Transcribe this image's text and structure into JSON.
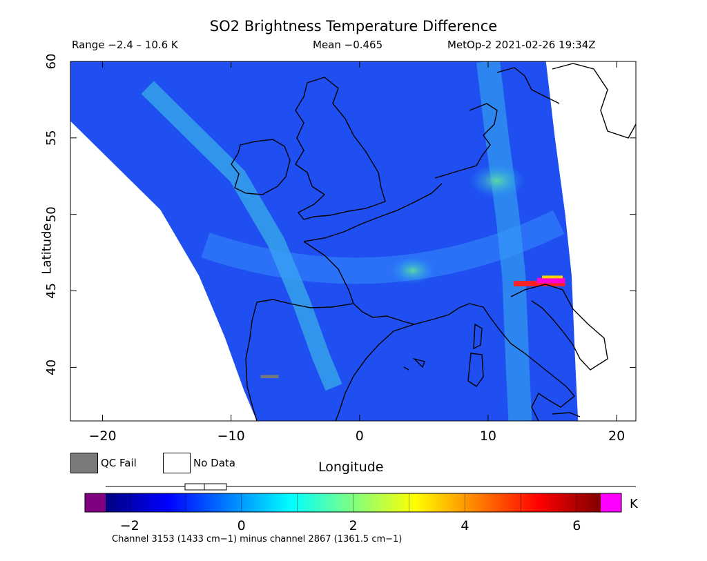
{
  "title": "SO2 Brightness Temperature Difference",
  "header": {
    "range": "Range −2.4 – 10.6 K",
    "mean": "Mean −0.465",
    "satellite_time": "MetOp-2 2021-02-26 19:34Z"
  },
  "legend": {
    "qc_fail": "QC Fail",
    "no_data": "No Data",
    "qc_fail_color": "#7a7a7a",
    "no_data_color": "#ffffff"
  },
  "colorbar": {
    "unit": "K",
    "min": -2.8,
    "max": 6.8,
    "ticks": [
      {
        "value": -2,
        "label": "−2"
      },
      {
        "value": 0,
        "label": "0"
      },
      {
        "value": 2,
        "label": "2"
      },
      {
        "value": 4,
        "label": "4"
      },
      {
        "value": 6,
        "label": "6"
      }
    ],
    "under_color": "#800080",
    "over_color": "#ff00ff",
    "stops": [
      "#000080",
      "#0000ff",
      "#0080ff",
      "#00ffff",
      "#80ff80",
      "#ffff00",
      "#ff8000",
      "#ff0000",
      "#800000"
    ],
    "footnote": "Channel 3153 (1433 cm−1) minus channel 2867 (1361.5 cm−1)"
  },
  "map": {
    "xlabel": "Longitude",
    "ylabel": "Latitude",
    "lon_range": [
      -22.5,
      21.5
    ],
    "lat_range": [
      36.5,
      60
    ],
    "x_ticks": [
      {
        "value": -20,
        "label": "−20"
      },
      {
        "value": -10,
        "label": "−10"
      },
      {
        "value": 0,
        "label": "0"
      },
      {
        "value": 10,
        "label": "10"
      },
      {
        "value": 20,
        "label": "20"
      }
    ],
    "y_ticks": [
      {
        "value": 40,
        "label": "40"
      },
      {
        "value": 45,
        "label": "45"
      },
      {
        "value": 50,
        "label": "50"
      },
      {
        "value": 55,
        "label": "55"
      },
      {
        "value": 60,
        "label": "60"
      }
    ],
    "swath_edge_west": [
      [
        -22.5,
        56.1
      ],
      [
        -15.5,
        50.3
      ],
      [
        -12.5,
        46.0
      ],
      [
        -10.5,
        42.0
      ],
      [
        -9.0,
        38.5
      ],
      [
        -8.0,
        36.5
      ]
    ],
    "swath_edge_east": [
      [
        14.5,
        60.0
      ],
      [
        15.2,
        55.0
      ],
      [
        16.0,
        50.0
      ],
      [
        16.5,
        46.0
      ],
      [
        16.8,
        40.0
      ],
      [
        17.0,
        36.5
      ]
    ],
    "features": [
      {
        "name": "high-sdf-band",
        "lon": [
          12,
          16
        ],
        "lat": [
          45.0,
          46.0
        ]
      },
      {
        "name": "qc-fail-pixels",
        "lon": [
          -7.7,
          -6.3
        ],
        "lat": [
          39.3,
          39.5
        ]
      }
    ]
  }
}
